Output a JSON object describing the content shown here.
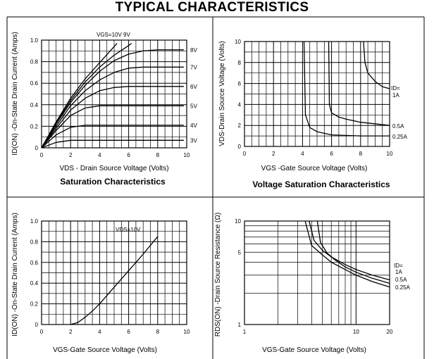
{
  "page_title": "TYPICAL CHARACTERISTICS",
  "chart_data": [
    {
      "id": "sat",
      "type": "line",
      "title": "Saturation Characteristics",
      "xlabel": "VDS - Drain Source Voltage (Volts)",
      "ylabel": "ID(ON) -On-State Drain Current (Amps)",
      "xlim": [
        0,
        10
      ],
      "ylim": [
        0,
        1.0
      ],
      "xticks": [
        0,
        2,
        4,
        6,
        8,
        10
      ],
      "yticks": [
        0,
        0.2,
        0.4,
        0.6,
        0.8,
        1.0
      ],
      "xtick_labels": [
        "0",
        "2",
        "4",
        "6",
        "8",
        "10"
      ],
      "ytick_labels": [
        "0",
        "0.2",
        "0.4",
        "0.6",
        "0.8",
        "1.0"
      ],
      "grid": true,
      "top_annotation": "VGS=10V  9V",
      "series": [
        {
          "name": "10V",
          "label": "",
          "x": [
            0,
            1,
            2,
            3,
            4,
            5,
            5.2
          ],
          "y": [
            0,
            0.24,
            0.46,
            0.64,
            0.79,
            0.94,
            0.97
          ]
        },
        {
          "name": "9V",
          "label": "",
          "x": [
            0,
            1,
            2,
            3,
            4,
            5,
            6,
            6.2
          ],
          "y": [
            0,
            0.23,
            0.44,
            0.61,
            0.75,
            0.86,
            0.95,
            0.97
          ]
        },
        {
          "name": "8V",
          "label": "8V",
          "x": [
            0,
            1,
            2,
            3,
            4,
            5,
            6,
            7,
            8,
            9.8
          ],
          "y": [
            0,
            0.22,
            0.42,
            0.58,
            0.71,
            0.81,
            0.87,
            0.9,
            0.91,
            0.91
          ]
        },
        {
          "name": "7V",
          "label": "7V",
          "x": [
            0,
            1,
            2,
            3,
            4,
            5,
            6,
            7,
            8,
            9.8
          ],
          "y": [
            0,
            0.2,
            0.39,
            0.53,
            0.63,
            0.7,
            0.74,
            0.75,
            0.75,
            0.75
          ]
        },
        {
          "name": "6V",
          "label": "6V",
          "x": [
            0,
            1,
            2,
            3,
            4,
            5,
            6,
            7,
            9.8
          ],
          "y": [
            0,
            0.18,
            0.35,
            0.46,
            0.53,
            0.56,
            0.57,
            0.57,
            0.57
          ]
        },
        {
          "name": "5V",
          "label": "5V",
          "x": [
            0,
            1,
            2,
            3,
            4,
            5,
            9.8
          ],
          "y": [
            0,
            0.16,
            0.3,
            0.37,
            0.39,
            0.39,
            0.39
          ]
        },
        {
          "name": "4V",
          "label": "4V",
          "x": [
            0,
            1,
            2,
            3,
            4,
            9.8
          ],
          "y": [
            0,
            0.12,
            0.19,
            0.21,
            0.21,
            0.21
          ]
        },
        {
          "name": "3V",
          "label": "3V",
          "x": [
            0,
            1,
            2,
            3,
            4,
            9.8
          ],
          "y": [
            0,
            0.05,
            0.07,
            0.07,
            0.07,
            0.07
          ]
        }
      ]
    },
    {
      "id": "vsat",
      "type": "line",
      "title": "Voltage Saturation Characteristics",
      "xlabel": "VGS -Gate Source Voltage (Volts)",
      "ylabel": "VDS-Drain Source Voltage (Volts)",
      "xlim": [
        0,
        10
      ],
      "ylim": [
        0,
        10
      ],
      "xticks": [
        0,
        2,
        4,
        6,
        8,
        10
      ],
      "yticks": [
        0,
        2,
        4,
        6,
        8,
        10
      ],
      "xtick_labels": [
        "0",
        "2",
        "4",
        "6",
        "8",
        "10"
      ],
      "ytick_labels": [
        "0",
        "2",
        "4",
        "6",
        "8",
        "10"
      ],
      "grid": true,
      "legend_title": "ID=",
      "series": [
        {
          "name": "1A",
          "label": "1A",
          "x": [
            8.2,
            8.3,
            8.5,
            9.0,
            9.5,
            10
          ],
          "y": [
            10,
            8,
            7,
            6.2,
            5.7,
            5.5
          ]
        },
        {
          "name": "0.5A",
          "label": "0.5A",
          "x": [
            5.8,
            5.85,
            6.0,
            6.5,
            7,
            8,
            10
          ],
          "y": [
            10,
            4.0,
            3.2,
            2.8,
            2.6,
            2.3,
            2.0
          ]
        },
        {
          "name": "0.25A",
          "label": "0.25A",
          "x": [
            4.1,
            4.2,
            4.5,
            5,
            6,
            8,
            10
          ],
          "y": [
            10,
            3.0,
            1.8,
            1.4,
            1.1,
            1.0,
            1.0
          ]
        }
      ]
    },
    {
      "id": "transfer",
      "type": "line",
      "title": "",
      "xlabel": "VGS-Gate Source Voltage  (Volts)",
      "ylabel": "ID(ON) -On-State Drain Current (Amps)",
      "xlim": [
        0,
        10
      ],
      "ylim": [
        0,
        1.0
      ],
      "xticks": [
        0,
        2,
        4,
        6,
        8,
        10
      ],
      "yticks": [
        0,
        0.2,
        0.4,
        0.6,
        0.8,
        1.0
      ],
      "xtick_labels": [
        "0",
        "2",
        "4",
        "6",
        "8",
        "10"
      ],
      "ytick_labels": [
        "0",
        "0.2",
        "0.4",
        "0.6",
        "0.8",
        "1.0"
      ],
      "grid": true,
      "annotation": "VDS=10V",
      "series": [
        {
          "name": "VDS=10V",
          "label": "",
          "x": [
            2,
            2.5,
            3,
            3.5,
            4,
            5,
            6,
            7,
            8
          ],
          "y": [
            0,
            0.02,
            0.07,
            0.13,
            0.2,
            0.36,
            0.52,
            0.68,
            0.85
          ]
        }
      ]
    },
    {
      "id": "rds",
      "type": "line",
      "title": "",
      "xlabel": "VGS-Gate Source Voltage (Volts)",
      "ylabel": "RDS(ON) -Drain Source Resistance (Ω)",
      "xscale": "log",
      "yscale": "log",
      "xlim": [
        1,
        20
      ],
      "ylim": [
        1,
        10
      ],
      "xticks": [
        1,
        10,
        20
      ],
      "yticks": [
        1,
        5,
        10
      ],
      "xtick_labels": [
        "1",
        "10",
        "20"
      ],
      "ytick_labels": [
        "1",
        "5",
        "10"
      ],
      "grid": true,
      "legend_title": "ID=",
      "series": [
        {
          "name": "1A",
          "label": "1A",
          "x": [
            3.8,
            4.2,
            5,
            6,
            8,
            10,
            14,
            20
          ],
          "y": [
            10,
            6.5,
            5.2,
            4.5,
            3.8,
            3.4,
            3.0,
            2.7
          ]
        },
        {
          "name": "0.5A",
          "label": "0.5A",
          "x": [
            4.5,
            4.8,
            5.5,
            6.5,
            8,
            10,
            14,
            20
          ],
          "y": [
            10,
            6.2,
            4.9,
            4.2,
            3.6,
            3.2,
            2.8,
            2.5
          ]
        },
        {
          "name": "0.25A",
          "label": "0.25A",
          "x": [
            3.5,
            4,
            5,
            6,
            8,
            10,
            14,
            20
          ],
          "y": [
            10,
            5.8,
            4.7,
            4.0,
            3.4,
            3.0,
            2.6,
            2.3
          ]
        }
      ]
    }
  ]
}
